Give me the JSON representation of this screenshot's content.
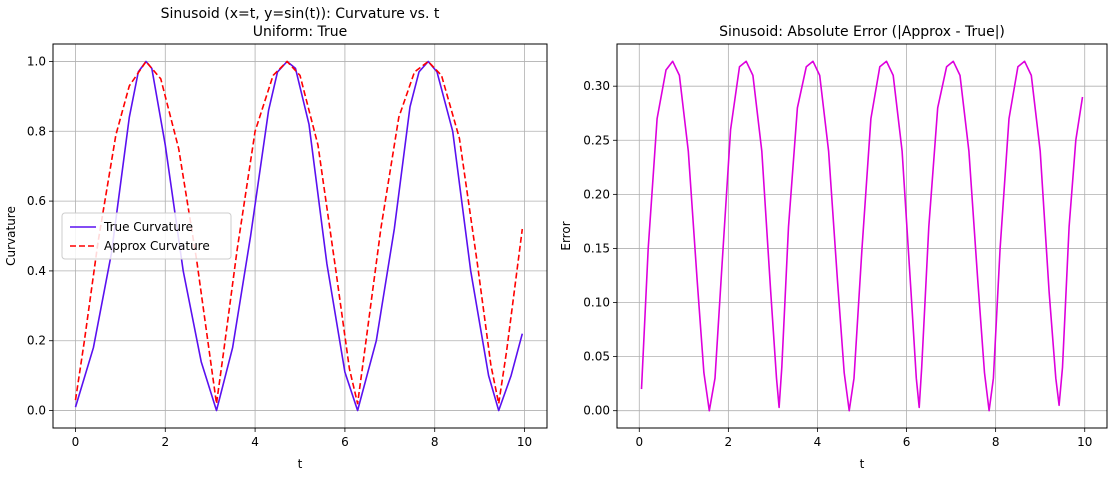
{
  "chart_data": [
    {
      "type": "line",
      "title": "Sinusoid (x=t, y=sin(t)): Curvature vs. t",
      "subtitle": "Uniform: True",
      "xlabel": "t",
      "ylabel": "Curvature",
      "xlim": [
        -0.5,
        10.5
      ],
      "ylim": [
        -0.05,
        1.05
      ],
      "xticks": [
        0,
        2,
        4,
        6,
        8,
        10
      ],
      "xtick_labels": [
        "0",
        "2",
        "4",
        "6",
        "8",
        "10"
      ],
      "yticks": [
        0.0,
        0.2,
        0.4,
        0.6,
        0.8,
        1.0
      ],
      "ytick_labels": [
        "0.0",
        "0.2",
        "0.4",
        "0.6",
        "0.8",
        "1.0"
      ],
      "grid": true,
      "legend": "center-left",
      "series": [
        {
          "name": "True Curvature",
          "color": "#5a10f0",
          "style": "solid",
          "x": [
            0.0,
            0.4,
            0.8,
            1.2,
            1.4,
            1.571,
            1.7,
            2.0,
            2.4,
            2.8,
            3.14,
            3.5,
            3.9,
            4.3,
            4.5,
            4.712,
            4.9,
            5.2,
            5.6,
            6.0,
            6.283,
            6.7,
            7.1,
            7.45,
            7.65,
            7.854,
            8.05,
            8.4,
            8.8,
            9.2,
            9.425,
            9.7,
            9.95
          ],
          "y": [
            0.01,
            0.18,
            0.45,
            0.84,
            0.97,
            1.0,
            0.98,
            0.76,
            0.4,
            0.14,
            0.0,
            0.18,
            0.5,
            0.86,
            0.97,
            1.0,
            0.98,
            0.82,
            0.42,
            0.11,
            0.0,
            0.2,
            0.52,
            0.87,
            0.97,
            1.0,
            0.97,
            0.8,
            0.4,
            0.1,
            0.0,
            0.1,
            0.22
          ]
        },
        {
          "name": "Approx Curvature",
          "color": "#ff0000",
          "style": "dashed",
          "x": [
            0.0,
            0.2,
            0.5,
            0.9,
            1.2,
            1.571,
            1.9,
            2.3,
            2.7,
            3.0,
            3.14,
            3.3,
            3.6,
            4.0,
            4.4,
            4.712,
            5.0,
            5.4,
            5.8,
            6.1,
            6.283,
            6.45,
            6.8,
            7.2,
            7.55,
            7.854,
            8.15,
            8.55,
            8.95,
            9.25,
            9.425,
            9.6,
            9.95
          ],
          "y": [
            0.03,
            0.2,
            0.48,
            0.79,
            0.93,
            1.0,
            0.95,
            0.75,
            0.43,
            0.15,
            0.02,
            0.17,
            0.46,
            0.8,
            0.96,
            1.0,
            0.96,
            0.76,
            0.4,
            0.12,
            0.02,
            0.18,
            0.52,
            0.84,
            0.97,
            1.0,
            0.96,
            0.78,
            0.42,
            0.13,
            0.02,
            0.17,
            0.52
          ]
        }
      ]
    },
    {
      "type": "line",
      "title": "Sinusoid: Absolute Error (|Approx - True|)",
      "xlabel": "t",
      "ylabel": "Error",
      "xlim": [
        -0.5,
        10.5
      ],
      "ylim": [
        -0.016,
        0.339
      ],
      "xticks": [
        0,
        2,
        4,
        6,
        8,
        10
      ],
      "xtick_labels": [
        "0",
        "2",
        "4",
        "6",
        "8",
        "10"
      ],
      "yticks": [
        0.0,
        0.05,
        0.1,
        0.15,
        0.2,
        0.25,
        0.3
      ],
      "ytick_labels": [
        "0.00",
        "0.05",
        "0.10",
        "0.15",
        "0.20",
        "0.25",
        "0.30"
      ],
      "grid": true,
      "series": [
        {
          "color": "#dd00dd",
          "style": "solid",
          "x": [
            0.05,
            0.2,
            0.4,
            0.6,
            0.75,
            0.9,
            1.1,
            1.3,
            1.45,
            1.571,
            1.7,
            1.85,
            2.05,
            2.25,
            2.4,
            2.55,
            2.75,
            2.95,
            3.08,
            3.14,
            3.2,
            3.35,
            3.55,
            3.75,
            3.9,
            4.05,
            4.25,
            4.45,
            4.6,
            4.712,
            4.82,
            5.0,
            5.2,
            5.4,
            5.55,
            5.7,
            5.9,
            6.1,
            6.22,
            6.283,
            6.34,
            6.5,
            6.7,
            6.9,
            7.05,
            7.2,
            7.4,
            7.6,
            7.75,
            7.854,
            7.95,
            8.1,
            8.3,
            8.5,
            8.65,
            8.8,
            9.0,
            9.2,
            9.35,
            9.425,
            9.5,
            9.65,
            9.8,
            9.95
          ],
          "y": [
            0.02,
            0.15,
            0.27,
            0.315,
            0.323,
            0.31,
            0.24,
            0.12,
            0.035,
            0.0,
            0.03,
            0.13,
            0.26,
            0.318,
            0.323,
            0.31,
            0.24,
            0.11,
            0.03,
            0.003,
            0.04,
            0.17,
            0.28,
            0.318,
            0.323,
            0.31,
            0.24,
            0.12,
            0.035,
            0.0,
            0.03,
            0.15,
            0.27,
            0.318,
            0.323,
            0.31,
            0.24,
            0.11,
            0.03,
            0.003,
            0.04,
            0.17,
            0.28,
            0.318,
            0.323,
            0.31,
            0.24,
            0.12,
            0.035,
            0.0,
            0.03,
            0.15,
            0.27,
            0.318,
            0.323,
            0.31,
            0.24,
            0.11,
            0.03,
            0.005,
            0.04,
            0.17,
            0.25,
            0.29
          ]
        }
      ]
    }
  ]
}
